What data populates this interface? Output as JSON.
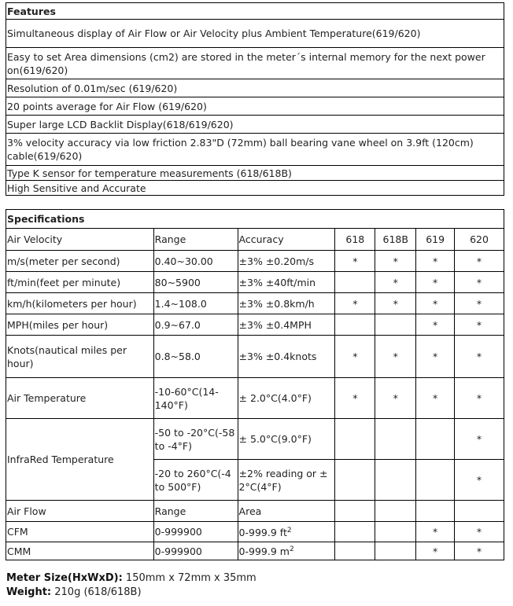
{
  "features": {
    "title": "Features",
    "items": [
      "Simultaneous display of Air Flow or Air Velocity plus Ambient Temperature(619/620)",
      "Easy to set Area dimensions (cm2) are stored in the meter´s internal memory for the next power on(619/620)",
      "Resolution of 0.01m/sec (619/620)",
      "20 points average for Air Flow (619/620)",
      "Super large LCD Backlit Display(618/619/620)",
      "3% velocity accuracy via low friction 2.83\"D (72mm) ball bearing vane wheel on 3.9ft (120cm) cable(619/620)",
      "Type K sensor for temperature measurements (618/618B)",
      "High Sensitive and Accurate"
    ]
  },
  "specs": {
    "title": "Specifications",
    "header": [
      "Air Velocity",
      "Range",
      "Accuracy",
      "618",
      "618B",
      "619",
      "620"
    ],
    "rows": [
      [
        "m/s(meter per second)",
        "0.40~30.00",
        "±3% ±0.20m/s",
        "*",
        "*",
        "*",
        "*"
      ],
      [
        "ft/min(feet per minute)",
        "80~5900",
        "±3% ±40ft/min",
        "",
        "*",
        "*",
        "*"
      ],
      [
        "km/h(kilometers per hour)",
        "1.4~108.0",
        "±3% ±0.8km/h",
        "*",
        "*",
        "*",
        "*"
      ],
      [
        "MPH(miles per hour)",
        "0.9~67.0",
        "±3% ±0.4MPH",
        "",
        "",
        "*",
        "*"
      ],
      [
        "Knots(nautical miles per hour)",
        "0.8~58.0",
        "±3% ±0.4knots",
        "*",
        "*",
        "*",
        "*"
      ],
      [
        "Air Temperature",
        "-10-60°C(14-140°F)",
        "± 2.0°C(4.0°F)",
        "*",
        "*",
        "*",
        "*"
      ]
    ],
    "ir": {
      "label": "InfraRed Temperature",
      "rows": [
        [
          "-50 to -20°C(-58 to -4°F)",
          "± 5.0°C(9.0°F)",
          "",
          "",
          "",
          "*"
        ],
        [
          "-20 to 260°C(-4 to 500°F)",
          "±2% reading or ± 2°C(4°F)",
          "",
          "",
          "",
          "*"
        ]
      ]
    },
    "airflow_header": [
      "Air Flow",
      "Range",
      "Area"
    ],
    "airflow": [
      {
        "label": "CFM",
        "range": "0-999900",
        "area": "0-999.9 ft",
        "sup": "2",
        "m": [
          "",
          "",
          "*",
          "*"
        ]
      },
      {
        "label": "CMM",
        "range": "0-999900",
        "area": "0-999.9 m",
        "sup": "2",
        "m": [
          "",
          "",
          "*",
          "*"
        ]
      }
    ]
  },
  "footer": {
    "size_label": "Meter Size(HxWxD):",
    "size_value": " 150mm x 72mm x 35mm",
    "weight_label": "Weight:",
    "weight_value": " 210g (618/618B)"
  }
}
